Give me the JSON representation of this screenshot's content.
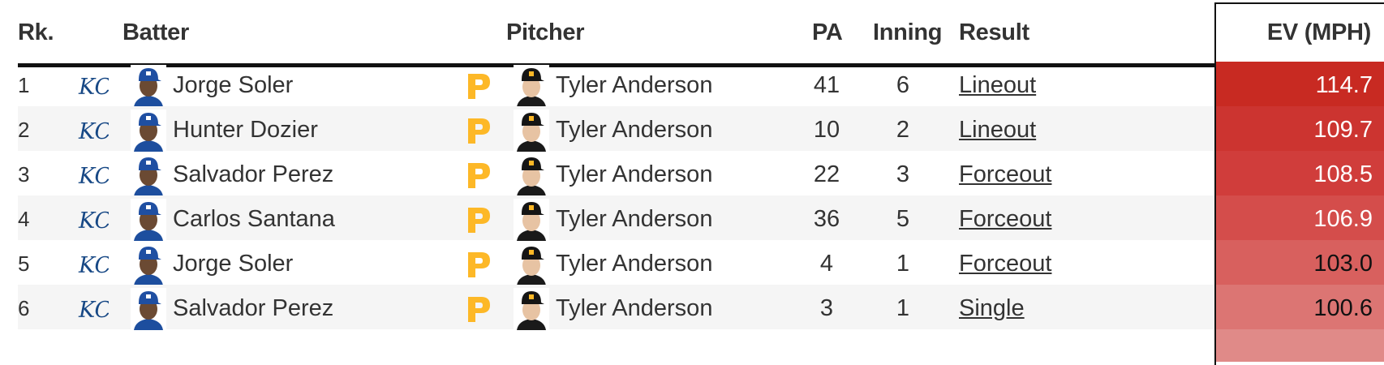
{
  "columns": {
    "rank": "Rk.",
    "batter": "Batter",
    "pitcher": "Pitcher",
    "pa": "PA",
    "inning": "Inning",
    "result": "Result",
    "ev": "EV (MPH)"
  },
  "colors": {
    "batter_team": "#174885",
    "pitcher_team": "#fdb827",
    "ev_scale": [
      "#c82a22",
      "#cc3430",
      "#d03d3b",
      "#d44d4b",
      "#d8605e",
      "#dc7573",
      "#e08a88"
    ]
  },
  "icons": {
    "batter_team_logo": "kc-royals-logo-icon",
    "pitcher_team_logo": "pittsburgh-pirates-logo-icon",
    "batter_headshot": "batter-headshot-icon",
    "pitcher_headshot": "pitcher-headshot-icon"
  },
  "logo_text": {
    "batter": "KC",
    "pitcher": "P"
  },
  "rows": [
    {
      "rank": "1",
      "batter": "Jorge Soler",
      "pitcher": "Tyler Anderson",
      "pa": "41",
      "inning": "6",
      "result": "Lineout",
      "ev": "114.7"
    },
    {
      "rank": "2",
      "batter": "Hunter Dozier",
      "pitcher": "Tyler Anderson",
      "pa": "10",
      "inning": "2",
      "result": "Lineout",
      "ev": "109.7"
    },
    {
      "rank": "3",
      "batter": "Salvador Perez",
      "pitcher": "Tyler Anderson",
      "pa": "22",
      "inning": "3",
      "result": "Forceout",
      "ev": "108.5"
    },
    {
      "rank": "4",
      "batter": "Carlos Santana",
      "pitcher": "Tyler Anderson",
      "pa": "36",
      "inning": "5",
      "result": "Forceout",
      "ev": "106.9"
    },
    {
      "rank": "5",
      "batter": "Jorge Soler",
      "pitcher": "Tyler Anderson",
      "pa": "4",
      "inning": "1",
      "result": "Forceout",
      "ev": "103.0"
    },
    {
      "rank": "6",
      "batter": "Salvador Perez",
      "pitcher": "Tyler Anderson",
      "pa": "3",
      "inning": "1",
      "result": "Single",
      "ev": "100.6"
    }
  ]
}
